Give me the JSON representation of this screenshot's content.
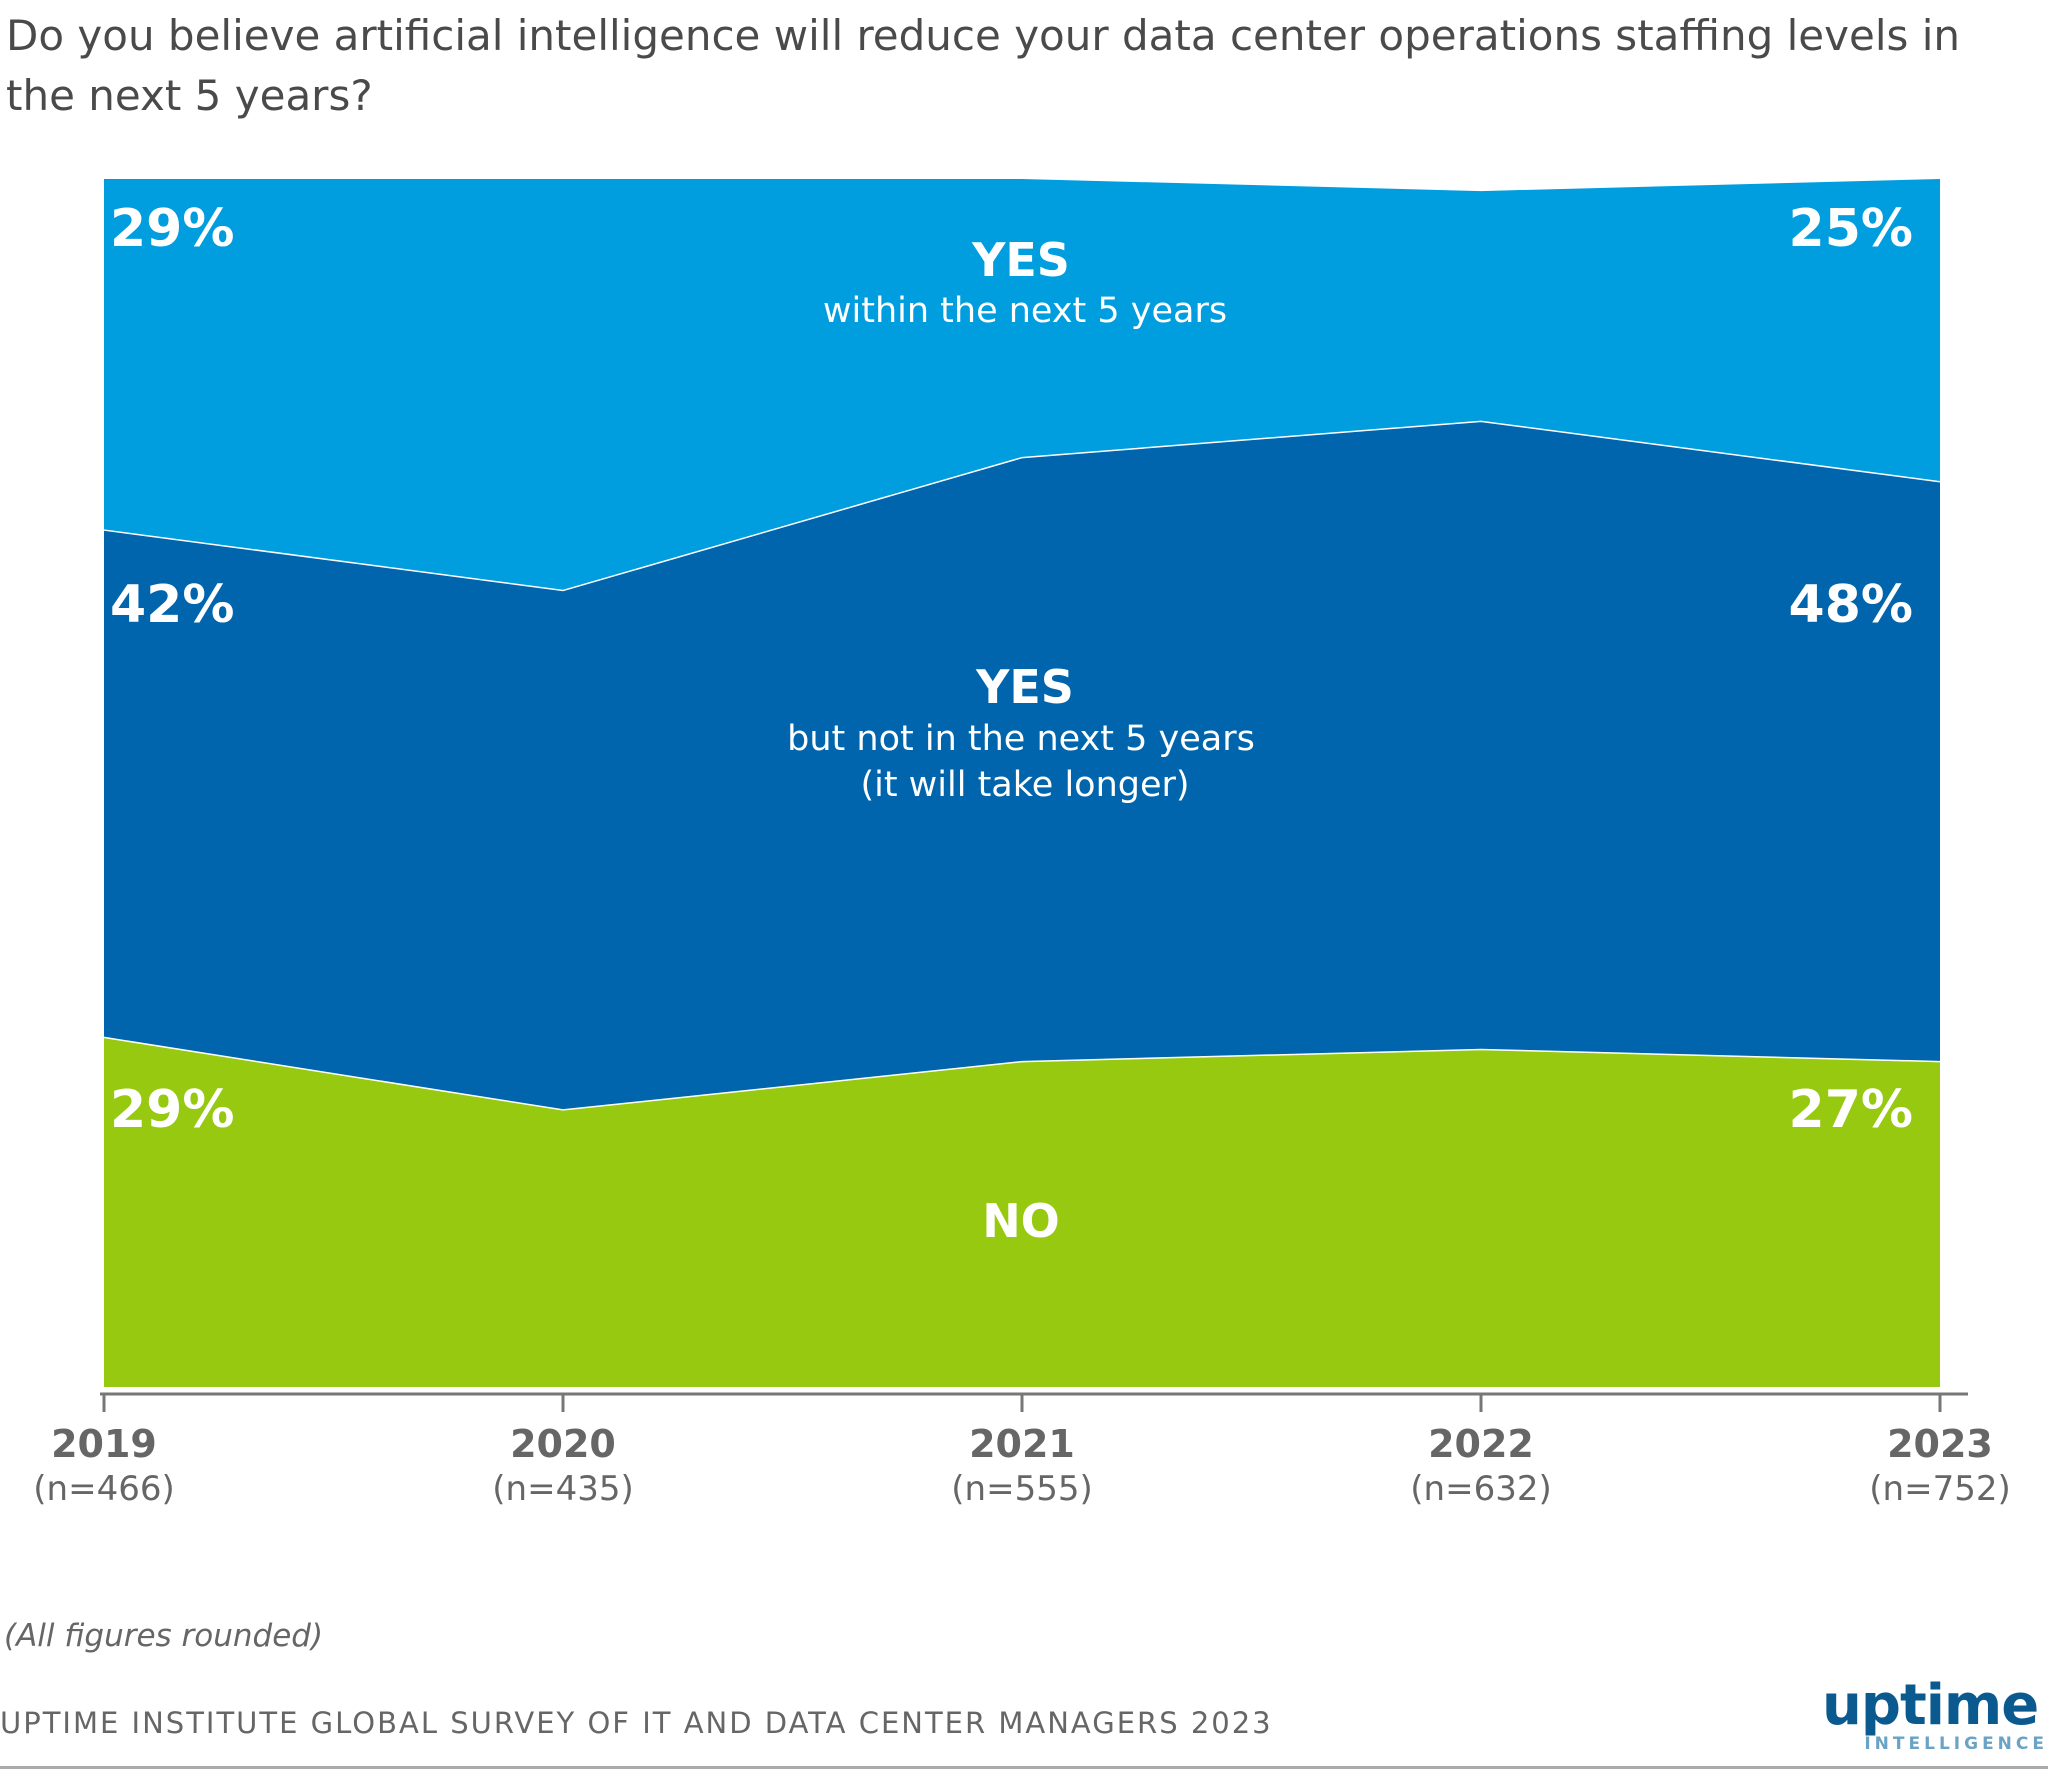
{
  "chart_data": {
    "type": "area",
    "stacked": true,
    "title": "Do you believe artificial intelligence will reduce your data center operations staffing levels in the next 5 years?",
    "x": [
      "2019",
      "2020",
      "2021",
      "2022",
      "2023"
    ],
    "x_sublabels": [
      "(n=466)",
      "(n=435)",
      "(n=555)",
      "(n=632)",
      "(n=752)"
    ],
    "ylim": [
      0,
      100
    ],
    "grid": false,
    "series": [
      {
        "name": "NO",
        "sublabel": "",
        "color": "#96c90f",
        "values": [
          29,
          23,
          27,
          28,
          27
        ]
      },
      {
        "name": "YES",
        "sublabel": "but not in the next 5 years",
        "sublabel2": "(it will take longer)",
        "color": "#0065ac",
        "values": [
          42,
          43,
          50,
          52,
          48
        ]
      },
      {
        "name": "YES",
        "sublabel": "within the next 5 years",
        "color": "#009ddf",
        "values": [
          29,
          34,
          23,
          19,
          25
        ]
      }
    ],
    "data_labels": {
      "first": [
        "29%",
        "42%",
        "29%"
      ],
      "last": [
        "27%",
        "48%",
        "25%"
      ]
    }
  },
  "footnote": "(All figures rounded)",
  "source": "UPTIME INSTITUTE GLOBAL SURVEY OF IT AND DATA CENTER MANAGERS 2023",
  "logo": {
    "word": "uptime",
    "sub": "INTELLIGENCE"
  }
}
